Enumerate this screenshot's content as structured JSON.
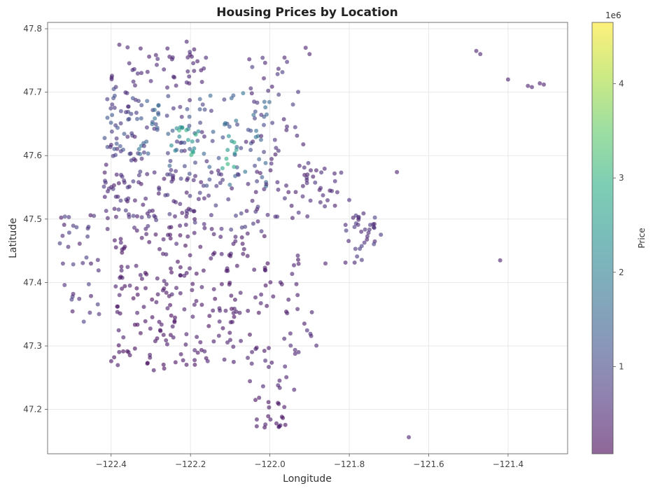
{
  "chart_data": {
    "type": "scatter",
    "title": "Housing Prices by Location",
    "xlabel": "Longitude",
    "ylabel": "Latitude",
    "xlim": [
      -122.56,
      -121.25
    ],
    "ylim": [
      47.13,
      47.81
    ],
    "xticks": [
      -122.4,
      -122.2,
      -122.0,
      -121.8,
      -121.6,
      -121.4
    ],
    "xtick_labels": [
      "−122.4",
      "−122.2",
      "−122.0",
      "−121.8",
      "−121.6",
      "−121.4"
    ],
    "yticks": [
      47.2,
      47.3,
      47.4,
      47.5,
      47.6,
      47.7,
      47.8
    ],
    "ytick_labels": [
      "47.2",
      "47.3",
      "47.4",
      "47.5",
      "47.6",
      "47.7",
      "47.8"
    ],
    "grid": true,
    "colormap": "viridis",
    "point_alpha": 0.6,
    "colorbar": {
      "label": "Price",
      "offset_text": "1e6",
      "range": [
        0.075,
        4.65
      ],
      "ticks": [
        1,
        2,
        3,
        4
      ],
      "tick_labels": [
        "1",
        "2",
        "3",
        "4"
      ]
    },
    "regions": [
      {
        "lon": [
          -122.4,
          -122.16
        ],
        "lat": [
          47.7,
          47.78
        ],
        "n": 45,
        "price": [
          0.35,
          0.6
        ]
      },
      {
        "lon": [
          -122.42,
          -122.33
        ],
        "lat": [
          47.6,
          47.71
        ],
        "n": 50,
        "price": [
          0.4,
          1.3
        ]
      },
      {
        "lon": [
          -122.33,
          -122.28
        ],
        "lat": [
          47.6,
          47.7
        ],
        "n": 25,
        "price": [
          0.6,
          1.8
        ]
      },
      {
        "lon": [
          -122.26,
          -122.14
        ],
        "lat": [
          47.55,
          47.7
        ],
        "n": 50,
        "price": [
          0.5,
          1.6
        ]
      },
      {
        "lon": [
          -122.25,
          -122.18
        ],
        "lat": [
          47.6,
          47.65
        ],
        "n": 18,
        "price": [
          1.8,
          3.2
        ]
      },
      {
        "lon": [
          -122.13,
          -122.0
        ],
        "lat": [
          47.55,
          47.7
        ],
        "n": 45,
        "price": [
          0.6,
          1.8
        ]
      },
      {
        "lon": [
          -122.12,
          -122.06
        ],
        "lat": [
          47.58,
          47.64
        ],
        "n": 10,
        "price": [
          2.2,
          3.3
        ]
      },
      {
        "lon": [
          -122.06,
          -121.92
        ],
        "lat": [
          47.62,
          47.77
        ],
        "n": 30,
        "price": [
          0.4,
          0.9
        ]
      },
      {
        "lon": [
          -122.42,
          -122.32
        ],
        "lat": [
          47.48,
          47.6
        ],
        "n": 50,
        "price": [
          0.3,
          0.8
        ]
      },
      {
        "lon": [
          -122.32,
          -122.18
        ],
        "lat": [
          47.46,
          47.58
        ],
        "n": 50,
        "price": [
          0.3,
          0.8
        ]
      },
      {
        "lon": [
          -122.18,
          -122.0
        ],
        "lat": [
          47.48,
          47.58
        ],
        "n": 40,
        "price": [
          0.35,
          0.9
        ]
      },
      {
        "lon": [
          -122.0,
          -121.9
        ],
        "lat": [
          47.5,
          47.62
        ],
        "n": 25,
        "price": [
          0.35,
          0.7
        ]
      },
      {
        "lon": [
          -121.92,
          -121.8
        ],
        "lat": [
          47.52,
          47.58
        ],
        "n": 25,
        "price": [
          0.35,
          0.7
        ]
      },
      {
        "lon": [
          -121.81,
          -121.72
        ],
        "lat": [
          47.43,
          47.51
        ],
        "n": 35,
        "price": [
          0.3,
          0.9
        ]
      },
      {
        "lon": [
          -122.4,
          -122.2
        ],
        "lat": [
          47.38,
          47.48
        ],
        "n": 60,
        "price": [
          0.2,
          0.45
        ]
      },
      {
        "lon": [
          -122.2,
          -122.0
        ],
        "lat": [
          47.35,
          47.48
        ],
        "n": 55,
        "price": [
          0.2,
          0.45
        ]
      },
      {
        "lon": [
          -122.0,
          -121.92
        ],
        "lat": [
          47.35,
          47.45
        ],
        "n": 15,
        "price": [
          0.25,
          0.45
        ]
      },
      {
        "lon": [
          -122.4,
          -122.22
        ],
        "lat": [
          47.26,
          47.38
        ],
        "n": 55,
        "price": [
          0.15,
          0.4
        ]
      },
      {
        "lon": [
          -122.22,
          -122.05
        ],
        "lat": [
          47.27,
          47.36
        ],
        "n": 40,
        "price": [
          0.2,
          0.45
        ]
      },
      {
        "lon": [
          -122.06,
          -121.93
        ],
        "lat": [
          47.23,
          47.3
        ],
        "n": 20,
        "price": [
          0.25,
          0.5
        ]
      },
      {
        "lon": [
          -122.04,
          -121.96
        ],
        "lat": [
          47.17,
          47.22
        ],
        "n": 20,
        "price": [
          0.2,
          0.4
        ]
      },
      {
        "lon": [
          -122.53,
          -122.43
        ],
        "lat": [
          47.33,
          47.51
        ],
        "n": 35,
        "price": [
          0.3,
          0.9
        ]
      },
      {
        "lon": [
          -121.97,
          -121.88
        ],
        "lat": [
          47.28,
          47.36
        ],
        "n": 10,
        "price": [
          0.3,
          0.6
        ]
      }
    ],
    "points": [
      {
        "lon": -121.48,
        "lat": 47.765,
        "price": 0.45
      },
      {
        "lon": -121.47,
        "lat": 47.76,
        "price": 0.45
      },
      {
        "lon": -121.4,
        "lat": 47.72,
        "price": 0.4
      },
      {
        "lon": -121.35,
        "lat": 47.71,
        "price": 0.4
      },
      {
        "lon": -121.34,
        "lat": 47.708,
        "price": 0.4
      },
      {
        "lon": -121.32,
        "lat": 47.714,
        "price": 0.4
      },
      {
        "lon": -121.31,
        "lat": 47.712,
        "price": 0.4
      },
      {
        "lon": -121.42,
        "lat": 47.435,
        "price": 0.4
      },
      {
        "lon": -121.65,
        "lat": 47.156,
        "price": 0.4
      },
      {
        "lon": -121.68,
        "lat": 47.574,
        "price": 0.4
      },
      {
        "lon": -121.86,
        "lat": 47.43,
        "price": 0.4
      },
      {
        "lon": -121.9,
        "lat": 47.76,
        "price": 0.45
      },
      {
        "lon": -121.91,
        "lat": 47.77,
        "price": 0.45
      }
    ]
  }
}
